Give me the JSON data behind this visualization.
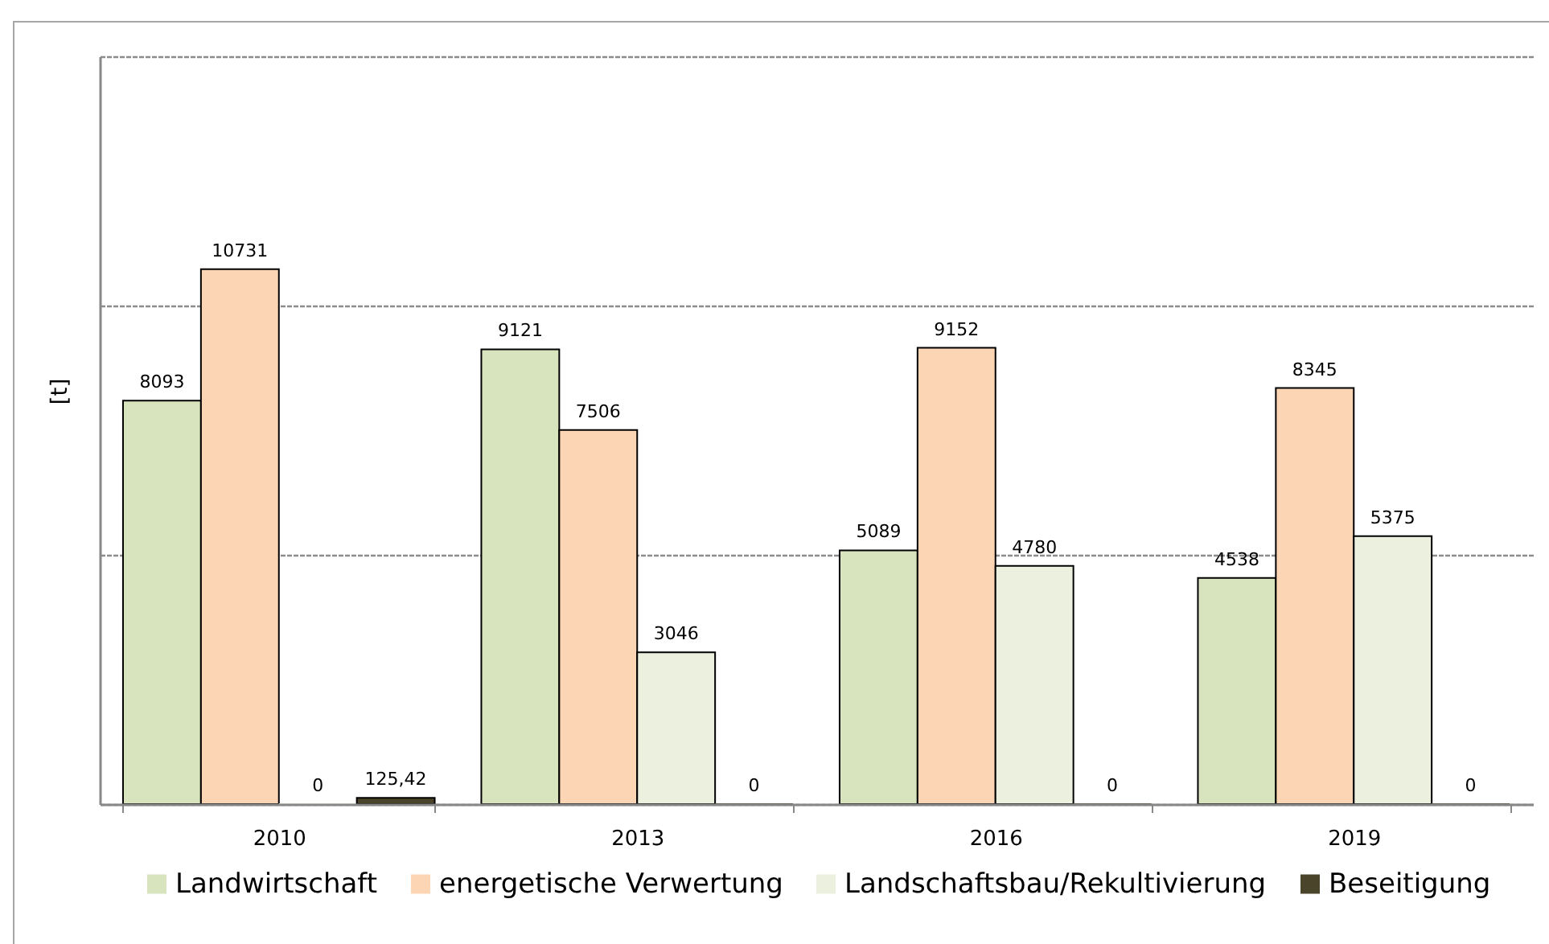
{
  "chart_data": {
    "type": "bar",
    "ylabel": "[t]",
    "categories": [
      "2010",
      "2013",
      "2016",
      "2019"
    ],
    "series": [
      {
        "name": "Landwirtschaft",
        "color": "#d7e4bd",
        "values": [
          8093,
          9121,
          5089,
          4538
        ],
        "value_labels": [
          "8093",
          "9121",
          "5089",
          "4538"
        ]
      },
      {
        "name": "energetische Verwertung",
        "color": "#fcd5b5",
        "values": [
          10731,
          7506,
          9152,
          8345
        ],
        "value_labels": [
          "10731",
          "7506",
          "9152",
          "8345"
        ]
      },
      {
        "name": "Landschaftsbau/Rekultivierung",
        "color": "#ebf1de",
        "values": [
          0,
          3046,
          4780,
          5375
        ],
        "value_labels": [
          "0",
          "3046",
          "4780",
          "5375"
        ]
      },
      {
        "name": "Beseitigung",
        "color": "#4a452a",
        "values": [
          125.42,
          0,
          0,
          0
        ],
        "value_labels": [
          "125,42",
          "0",
          "0",
          "0"
        ]
      }
    ],
    "ylim": [
      0,
      15000
    ],
    "yticks": [
      0,
      5000,
      10000,
      15000
    ],
    "grid": "y",
    "legend": "bottom",
    "tick_labels": "x"
  }
}
